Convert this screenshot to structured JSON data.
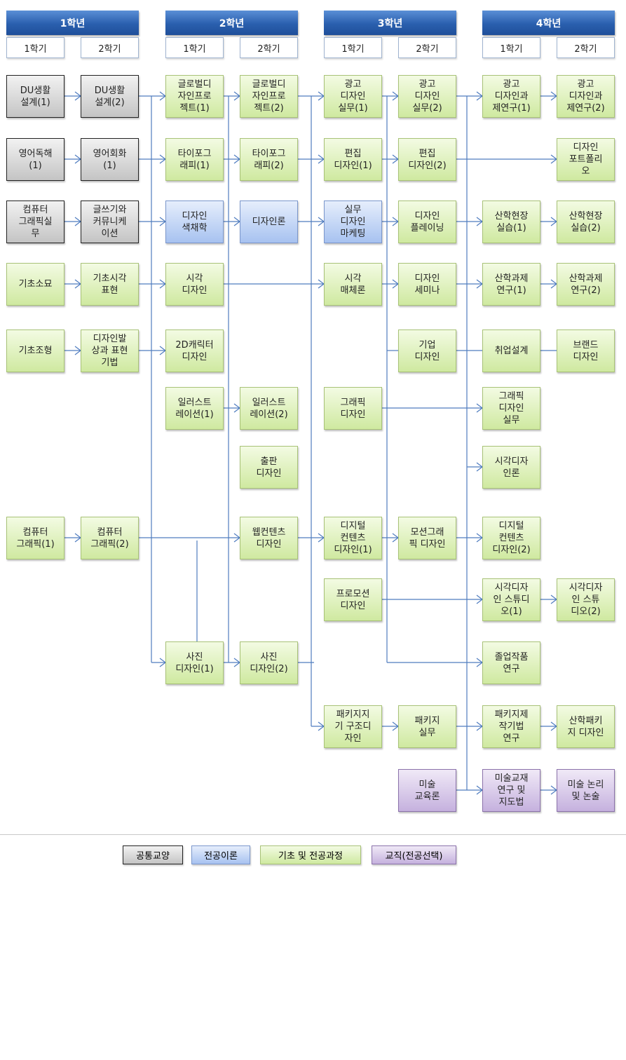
{
  "years": [
    {
      "label": "1학년",
      "semesters": [
        "1학기",
        "2학기"
      ]
    },
    {
      "label": "2학년",
      "semesters": [
        "1학기",
        "2학기"
      ]
    },
    {
      "label": "3학년",
      "semesters": [
        "1학기",
        "2학기"
      ]
    },
    {
      "label": "4학년",
      "semesters": [
        "1학기",
        "2학기"
      ]
    }
  ],
  "colors": {
    "common": "#c4c4c4",
    "theory": "#a7c2f0",
    "major": "#cfe9a0",
    "teaching": "#c5b1de",
    "connector": "#4f7cbf",
    "year_header": "#2a5fae"
  },
  "courses": [
    {
      "text": "DU생활\n설계(1)",
      "category": "common"
    },
    {
      "text": "DU생활\n설계(2)",
      "category": "common"
    },
    {
      "text": "글로벌디\n자인프로\n젝트(1)",
      "category": "major"
    },
    {
      "text": "글로벌디\n자인프로\n젝트(2)",
      "category": "major"
    },
    {
      "text": "광고\n디자인\n실무(1)",
      "category": "major"
    },
    {
      "text": "광고\n디자인\n실무(2)",
      "category": "major"
    },
    {
      "text": "광고\n디자인과\n제연구(1)",
      "category": "major"
    },
    {
      "text": "광고\n디자인과\n제연구(2)",
      "category": "major"
    },
    {
      "text": "영어독해\n(1)",
      "category": "common"
    },
    {
      "text": "영어회화\n(1)",
      "category": "common"
    },
    {
      "text": "타이포그\n래피(1)",
      "category": "major"
    },
    {
      "text": "타이포그\n래피(2)",
      "category": "major"
    },
    {
      "text": "편집\n디자인(1)",
      "category": "major"
    },
    {
      "text": "편집\n디자인(2)",
      "category": "major"
    },
    {
      "text": "디자인\n포트폴리\n오",
      "category": "major"
    },
    {
      "text": "컴퓨터\n그래픽실\n무",
      "category": "common"
    },
    {
      "text": "글쓰기와\n커뮤니케\n이션",
      "category": "common"
    },
    {
      "text": "디자인\n색채학",
      "category": "theory"
    },
    {
      "text": "디자인론",
      "category": "theory"
    },
    {
      "text": "실무\n디자인\n마케팅",
      "category": "theory"
    },
    {
      "text": "디자인\n플레이닝",
      "category": "major"
    },
    {
      "text": "산학현장\n실습(1)",
      "category": "major"
    },
    {
      "text": "산학현장\n실습(2)",
      "category": "major"
    },
    {
      "text": "기초소묘",
      "category": "major"
    },
    {
      "text": "기초시각\n표현",
      "category": "major"
    },
    {
      "text": "시각\n디자인",
      "category": "major"
    },
    {
      "text": "시각\n매체론",
      "category": "major"
    },
    {
      "text": "디자인\n세미나",
      "category": "major"
    },
    {
      "text": "산학과제\n연구(1)",
      "category": "major"
    },
    {
      "text": "산학과제\n연구(2)",
      "category": "major"
    },
    {
      "text": "기초조형",
      "category": "major"
    },
    {
      "text": "디자인발\n상과 표현\n기법",
      "category": "major"
    },
    {
      "text": "2D캐릭터\n디자인",
      "category": "major"
    },
    {
      "text": "기업\n디자인",
      "category": "major"
    },
    {
      "text": "취업설계",
      "category": "major"
    },
    {
      "text": "브랜드\n디자인",
      "category": "major"
    },
    {
      "text": "일러스트\n레이션(1)",
      "category": "major"
    },
    {
      "text": "일러스트\n레이션(2)",
      "category": "major"
    },
    {
      "text": "그래픽\n디자인",
      "category": "major"
    },
    {
      "text": "그래픽\n디자인\n실무",
      "category": "major"
    },
    {
      "text": "출판\n디자인",
      "category": "major"
    },
    {
      "text": "시각디자\n인론",
      "category": "major"
    },
    {
      "text": "컴퓨터\n그래픽(1)",
      "category": "major"
    },
    {
      "text": "컴퓨터\n그래픽(2)",
      "category": "major"
    },
    {
      "text": "웹컨텐츠\n디자인",
      "category": "major"
    },
    {
      "text": "디지털\n컨텐츠\n디자인(1)",
      "category": "major"
    },
    {
      "text": "모션그래\n픽 디자인",
      "category": "major"
    },
    {
      "text": "디지털\n컨텐츠\n디자인(2)",
      "category": "major"
    },
    {
      "text": "프로모션\n디자인",
      "category": "major"
    },
    {
      "text": "시각디자\n인 스튜디\n오(1)",
      "category": "major"
    },
    {
      "text": "시각디자\n인 스튜\n디오(2)",
      "category": "major"
    },
    {
      "text": "사진\n디자인(1)",
      "category": "major"
    },
    {
      "text": "사진\n디자인(2)",
      "category": "major"
    },
    {
      "text": "졸업작품\n연구",
      "category": "major"
    },
    {
      "text": "패키지지\n기 구조디\n자인",
      "category": "major"
    },
    {
      "text": "패키지\n실무",
      "category": "major"
    },
    {
      "text": "패키지제\n작기법\n연구",
      "category": "major"
    },
    {
      "text": "산학패키\n지 디자인",
      "category": "major"
    },
    {
      "text": "미술\n교육론",
      "category": "teaching"
    },
    {
      "text": "미술교재\n연구 및\n지도법",
      "category": "teaching"
    },
    {
      "text": "미술 논리\n및 논술",
      "category": "teaching"
    }
  ],
  "legend": [
    {
      "label": "공통교양",
      "category": "common"
    },
    {
      "label": "전공이론",
      "category": "theory"
    },
    {
      "label": "기초 및 전공과정",
      "category": "major"
    },
    {
      "label": "교직(전공선택)",
      "category": "teaching"
    }
  ]
}
